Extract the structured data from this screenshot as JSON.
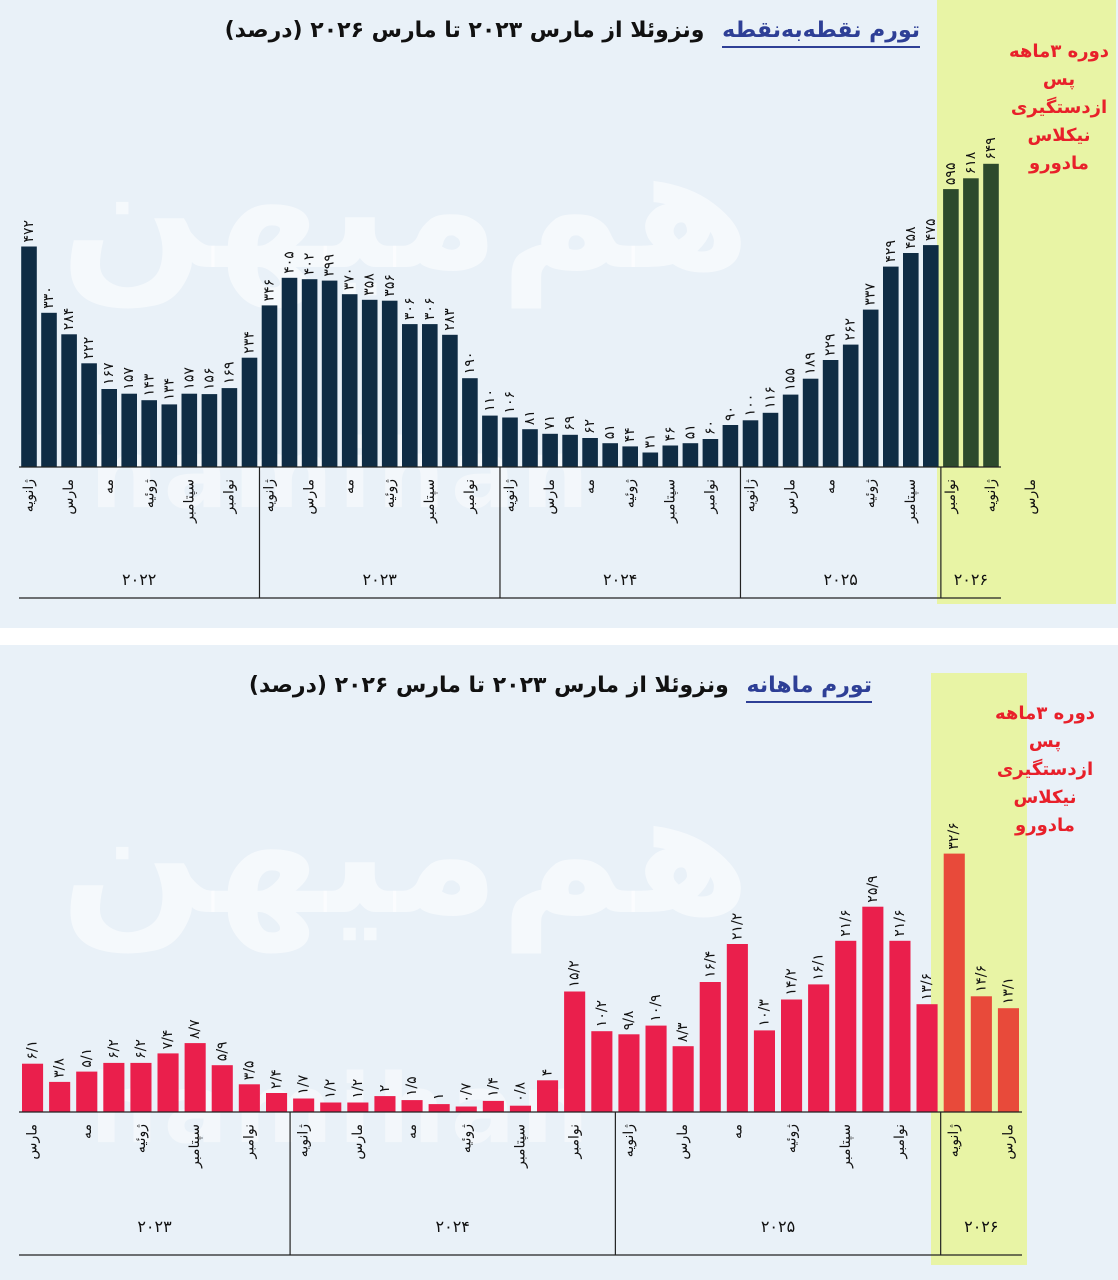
{
  "watermark": {
    "fa": "هم‌میهن",
    "latin": "hamihan"
  },
  "chart_data": [
    {
      "type": "bar",
      "title": "ونزوئلا از مارس ۲۰۲۳ تا مارس ۲۰۲۶ (درصد)",
      "title_accent": "تورم نقطه‌به‌نقطه",
      "bar_color": "#0f2c44",
      "highlight_bar_color": "#2d4a2c",
      "values": [
        472,
        330,
        284,
        222,
        167,
        157,
        143,
        134,
        157,
        156,
        169,
        234,
        346,
        405,
        402,
        399,
        370,
        358,
        356,
        306,
        306,
        283,
        190,
        110,
        106,
        81,
        71,
        69,
        62,
        51,
        44,
        31,
        46,
        51,
        60,
        90,
        100,
        116,
        155,
        189,
        229,
        262,
        337,
        429,
        458,
        475,
        595,
        618,
        649
      ],
      "tick_labels": [
        "ژانویه",
        "مارس",
        "مه",
        "ژوئیه",
        "سپتامبر",
        "نوامبر",
        "ژانویه",
        "مارس",
        "مه",
        "ژوئیه",
        "سپتامبر",
        "نوامبر",
        "ژانویه",
        "مارس",
        "مه",
        "ژوئیه",
        "سپتامبر",
        "نوامبر",
        "ژانویه",
        "مارس",
        "مه",
        "ژوئیه",
        "سپتامبر",
        "نوامبر",
        "ژانویه",
        "مارس"
      ],
      "years": [
        "۲۰۲۲",
        "۲۰۲۳",
        "۲۰۲۴",
        "۲۰۲۵",
        "۲۰۲۶"
      ],
      "value_labels": [
        "۴۷۲",
        "۳۳۰",
        "۲۸۴",
        "۲۲۲",
        "۱۶۷",
        "۱۵۷",
        "۱۴۳",
        "۱۳۴",
        "۱۵۷",
        "۱۵۶",
        "۱۶۹",
        "۲۳۴",
        "۳۴۶",
        "۴۰۵",
        "۴۰۲",
        "۳۹۹",
        "۳۷۰",
        "۳۵۸",
        "۳۵۶",
        "۳۰۶",
        "۳۰۶",
        "۲۸۳",
        "۱۹۰",
        "۱۱۰",
        "۱۰۶",
        "۸۱",
        "۷۱",
        "۶۹",
        "۶۲",
        "۵۱",
        "۴۴",
        "۳۱",
        "۴۶",
        "۵۱",
        "۶۰",
        "۹۰",
        "۱۰۰",
        "۱۱۶",
        "۱۵۵",
        "۱۸۹",
        "۲۲۹",
        "۲۶۲",
        "۳۳۷",
        "۴۲۹",
        "۴۵۸",
        "۴۷۵",
        "۵۹۵",
        "۶۱۸",
        "۶۴۹"
      ],
      "ylim": [
        0,
        700
      ],
      "annotation": [
        "دوره ۳ماهه",
        "پس",
        "ازدستگیری",
        "نیکلاس",
        "مادورو"
      ]
    },
    {
      "type": "bar",
      "title": "ونزوئلا از مارس ۲۰۲۳ تا مارس ۲۰۲۶ (درصد)",
      "title_accent": "تورم ماهانه",
      "bar_color": "#ea1f4c",
      "highlight_bar_color": "#e84a3a",
      "values": [
        6.1,
        3.8,
        5.1,
        6.2,
        6.2,
        7.4,
        8.7,
        5.9,
        3.5,
        2.4,
        1.7,
        1.2,
        1.2,
        2,
        1.5,
        1,
        0.7,
        1.4,
        0.8,
        4,
        15.2,
        10.2,
        9.8,
        10.9,
        8.3,
        16.4,
        21.2,
        10.3,
        14.2,
        16.1,
        21.6,
        25.9,
        21.6,
        13.6,
        32.6,
        14.6,
        13.1
      ],
      "tick_labels": [
        "مارس",
        "مه",
        "ژوئیه",
        "سپتامبر",
        "نوامبر",
        "ژانویه",
        "مارس",
        "مه",
        "ژوئیه",
        "سپتامبر",
        "نوامبر",
        "ژانویه",
        "مارس",
        "مه",
        "ژوئیه",
        "سپتامبر",
        "نوامبر",
        "ژانویه",
        "مارس"
      ],
      "years": [
        "۲۰۲۳",
        "۲۰۲۴",
        "۲۰۲۵",
        "۲۰۲۶"
      ],
      "value_labels": [
        "۶/۱",
        "۳/۸",
        "۵/۱",
        "۶/۲",
        "۶/۲",
        "۷/۴",
        "۸/۷",
        "۵/۹",
        "۳/۵",
        "۲/۴",
        "۱/۷",
        "۱/۲",
        "۱/۲",
        "۲",
        "۱/۵",
        "۱",
        "۰/۷",
        "۱/۴",
        "۰/۸",
        "۴",
        "۱۵/۲",
        "۱۰/۲",
        "۹/۸",
        "۱۰/۹",
        "۸/۳",
        "۱۶/۴",
        "۲۱/۲",
        "۱۰/۳",
        "۱۴/۲",
        "۱۶/۱",
        "۲۱/۶",
        "۲۵/۹",
        "۲۱/۶",
        "۱۳/۶",
        "۳۲/۶",
        "۱۴/۶",
        "۱۳/۱"
      ],
      "ylim": [
        0,
        40
      ],
      "annotation": [
        "دوره ۳ماهه",
        "پس",
        "ازدستگیری",
        "نیکلاس",
        "مادورو"
      ]
    }
  ]
}
